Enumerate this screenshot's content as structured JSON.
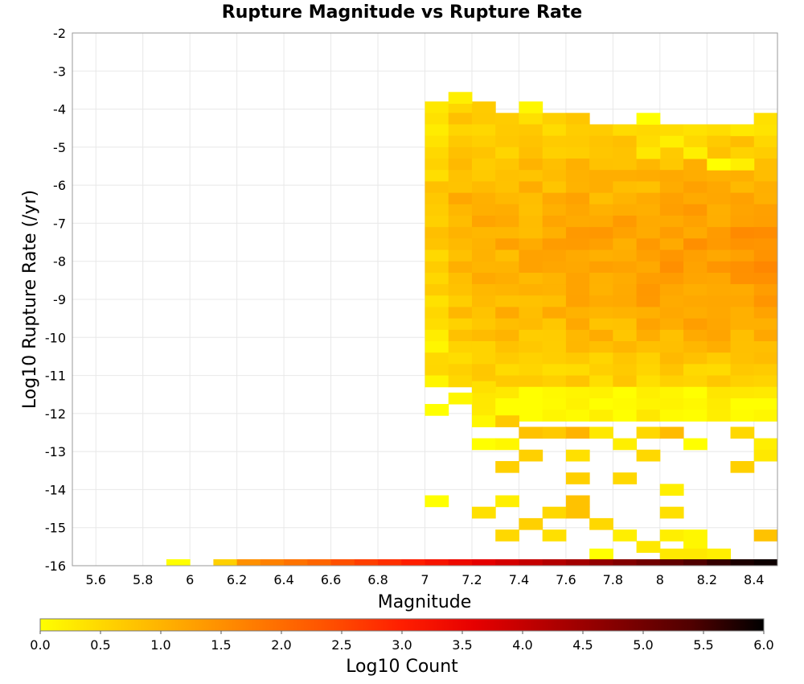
{
  "chart_data": {
    "type": "heatmap",
    "title": "Rupture Magnitude vs Rupture Rate",
    "xlabel": "Magnitude",
    "ylabel": "Log10 Rupture Rate (/yr)",
    "xlim": [
      5.5,
      8.5
    ],
    "ylim": [
      -16,
      -2
    ],
    "x_ticks": [
      "5.6",
      "5.8",
      "6",
      "6.2",
      "6.4",
      "6.6",
      "6.8",
      "7",
      "7.2",
      "7.4",
      "7.6",
      "7.8",
      "8",
      "8.2",
      "8.4"
    ],
    "y_ticks": [
      "-2",
      "-3",
      "-4",
      "-5",
      "-6",
      "-7",
      "-8",
      "-9",
      "-10",
      "-11",
      "-12",
      "-13",
      "-14",
      "-15",
      "-16"
    ],
    "bin_width_x": 0.1,
    "bin_width_y": 0.3,
    "colorbar": {
      "label": "Log10 Count",
      "min": 0,
      "max": 6,
      "ticks": [
        "0.0",
        "0.5",
        "1.0",
        "1.5",
        "2.0",
        "2.5",
        "3.0",
        "3.5",
        "4.0",
        "4.5",
        "5.0",
        "5.5",
        "6.0"
      ],
      "colors": [
        "#ffff00",
        "#ffd000",
        "#ffa500",
        "#ff7a00",
        "#ff5000",
        "#ff1e00",
        "#e60000",
        "#b40000",
        "#820000",
        "#500000",
        "#000000"
      ]
    },
    "bottom_row": {
      "y": -15.95,
      "bins": [
        [
          5.95,
          0.0
        ],
        [
          6.15,
          0.6
        ],
        [
          6.25,
          1.5
        ],
        [
          6.35,
          1.7
        ],
        [
          6.45,
          1.9
        ],
        [
          6.55,
          2.1
        ],
        [
          6.65,
          2.4
        ],
        [
          6.75,
          2.6
        ],
        [
          6.85,
          2.8
        ],
        [
          6.95,
          3.0
        ],
        [
          7.05,
          3.2
        ],
        [
          7.15,
          3.4
        ],
        [
          7.25,
          3.6
        ],
        [
          7.35,
          3.8
        ],
        [
          7.45,
          4.0
        ],
        [
          7.55,
          4.2
        ],
        [
          7.65,
          4.4
        ],
        [
          7.75,
          4.6
        ],
        [
          7.85,
          4.8
        ],
        [
          7.95,
          5.0
        ],
        [
          8.05,
          5.2
        ],
        [
          8.15,
          5.4
        ],
        [
          8.25,
          5.6
        ],
        [
          8.35,
          5.8
        ],
        [
          8.45,
          5.9
        ]
      ]
    },
    "sparse_cells": [
      [
        7.15,
        -3.7,
        0.2
      ],
      [
        7.45,
        -3.95,
        0.1
      ],
      [
        7.95,
        -4.25,
        0.0
      ],
      [
        8.45,
        -4.25,
        0.4
      ],
      [
        8.35,
        -4.55,
        0.3
      ],
      [
        8.05,
        -4.85,
        0.2
      ],
      [
        7.95,
        -5.15,
        0.3
      ],
      [
        8.15,
        -5.15,
        0.2
      ],
      [
        8.25,
        -5.45,
        0.0
      ],
      [
        8.35,
        -5.45,
        0.2
      ],
      [
        7.05,
        -11.9,
        0.0
      ],
      [
        7.15,
        -11.6,
        0.1
      ],
      [
        7.25,
        -11.3,
        0.4
      ],
      [
        7.25,
        -12.2,
        0.1
      ],
      [
        7.25,
        -12.8,
        0.0
      ],
      [
        7.35,
        -12.8,
        0.1
      ],
      [
        7.35,
        -12.2,
        0.7
      ],
      [
        7.45,
        -12.5,
        0.8
      ],
      [
        7.55,
        -12.5,
        0.7
      ],
      [
        7.65,
        -12.5,
        1.0
      ],
      [
        7.75,
        -12.5,
        0.3
      ],
      [
        7.85,
        -12.8,
        0.2
      ],
      [
        7.95,
        -12.5,
        0.5
      ],
      [
        8.05,
        -12.5,
        0.9
      ],
      [
        8.15,
        -12.8,
        0.0
      ],
      [
        8.35,
        -12.5,
        0.5
      ],
      [
        8.45,
        -12.8,
        0.2
      ],
      [
        8.45,
        -13.1,
        0.3
      ],
      [
        7.45,
        -13.1,
        0.6
      ],
      [
        7.65,
        -13.1,
        0.4
      ],
      [
        7.95,
        -13.1,
        0.5
      ],
      [
        7.35,
        -13.4,
        0.6
      ],
      [
        8.35,
        -13.4,
        0.6
      ],
      [
        7.65,
        -13.7,
        0.6
      ],
      [
        7.85,
        -13.7,
        0.5
      ],
      [
        8.05,
        -14.0,
        0.2
      ],
      [
        7.05,
        -14.3,
        0.0
      ],
      [
        7.35,
        -14.3,
        0.2
      ],
      [
        7.65,
        -14.3,
        0.8
      ],
      [
        7.25,
        -14.6,
        0.4
      ],
      [
        7.55,
        -14.6,
        0.5
      ],
      [
        7.65,
        -14.6,
        0.8
      ],
      [
        8.05,
        -14.6,
        0.4
      ],
      [
        7.45,
        -14.9,
        0.6
      ],
      [
        7.75,
        -14.9,
        0.5
      ],
      [
        7.35,
        -15.2,
        0.5
      ],
      [
        7.55,
        -15.2,
        0.4
      ],
      [
        7.85,
        -15.2,
        0.2
      ],
      [
        8.05,
        -15.2,
        0.2
      ],
      [
        8.15,
        -15.2,
        0.1
      ],
      [
        8.45,
        -15.2,
        0.8
      ],
      [
        8.15,
        -15.5,
        0.1
      ],
      [
        7.95,
        -15.5,
        0.3
      ],
      [
        7.75,
        -15.7,
        0.0
      ],
      [
        8.05,
        -15.7,
        0.3
      ],
      [
        8.15,
        -15.7,
        0.3
      ],
      [
        8.25,
        -15.7,
        0.2
      ]
    ]
  }
}
